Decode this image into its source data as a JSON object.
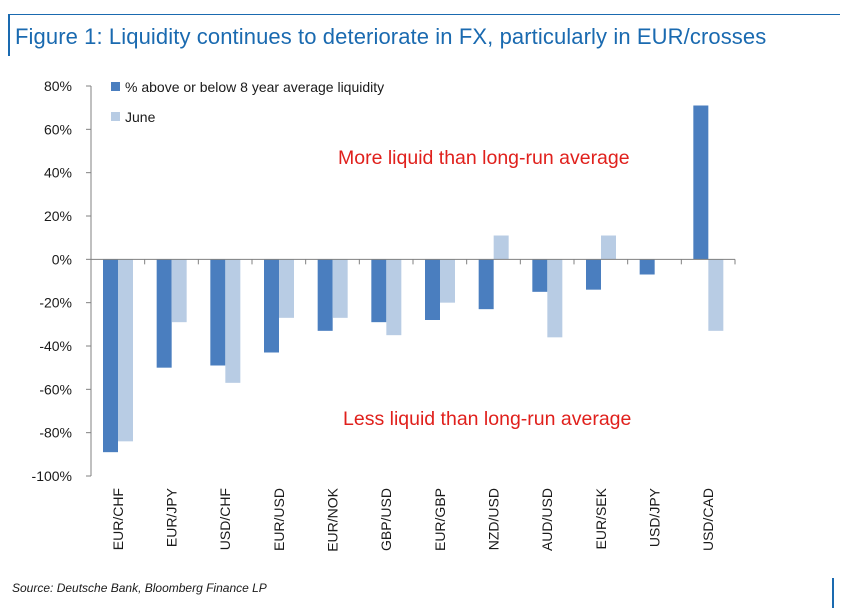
{
  "title": "Figure 1: Liquidity continues to deteriorate in FX, particularly in EUR/crosses",
  "source": "Source: Deutsche Bank, Bloomberg Finance LP",
  "colors": {
    "frame": "#1a6ab0",
    "annotation": "#e0201c"
  },
  "chart_data": {
    "type": "bar",
    "categories": [
      "EUR/CHF",
      "EUR/JPY",
      "USD/CHF",
      "EUR/USD",
      "EUR/NOK",
      "GBP/USD",
      "EUR/GBP",
      "NZD/USD",
      "AUD/USD",
      "EUR/SEK",
      "USD/JPY",
      "USD/CAD"
    ],
    "series": [
      {
        "name": "% above or below 8 year average liquidity",
        "color": "#4a7ebf",
        "values": [
          -89,
          -50,
          -49,
          -43,
          -33,
          -29,
          -28,
          -23,
          -15,
          -14,
          -7,
          71
        ]
      },
      {
        "name": "June",
        "color": "#b8cce4",
        "values": [
          -84,
          -29,
          -57,
          -27,
          -27,
          -35,
          -20,
          11,
          -36,
          11,
          null,
          -33
        ]
      }
    ],
    "ylim": [
      -100,
      80
    ],
    "yticks": [
      80,
      60,
      40,
      20,
      0,
      -20,
      -40,
      -60,
      -80,
      -100
    ],
    "ytick_labels": [
      "80%",
      "60%",
      "40%",
      "20%",
      "0%",
      "-20%",
      "-40%",
      "-60%",
      "-80%",
      "-100%"
    ],
    "legend_position": "top-left",
    "annotations": [
      {
        "text": "More liquid than long-run average"
      },
      {
        "text": "Less liquid than long-run average"
      }
    ]
  }
}
